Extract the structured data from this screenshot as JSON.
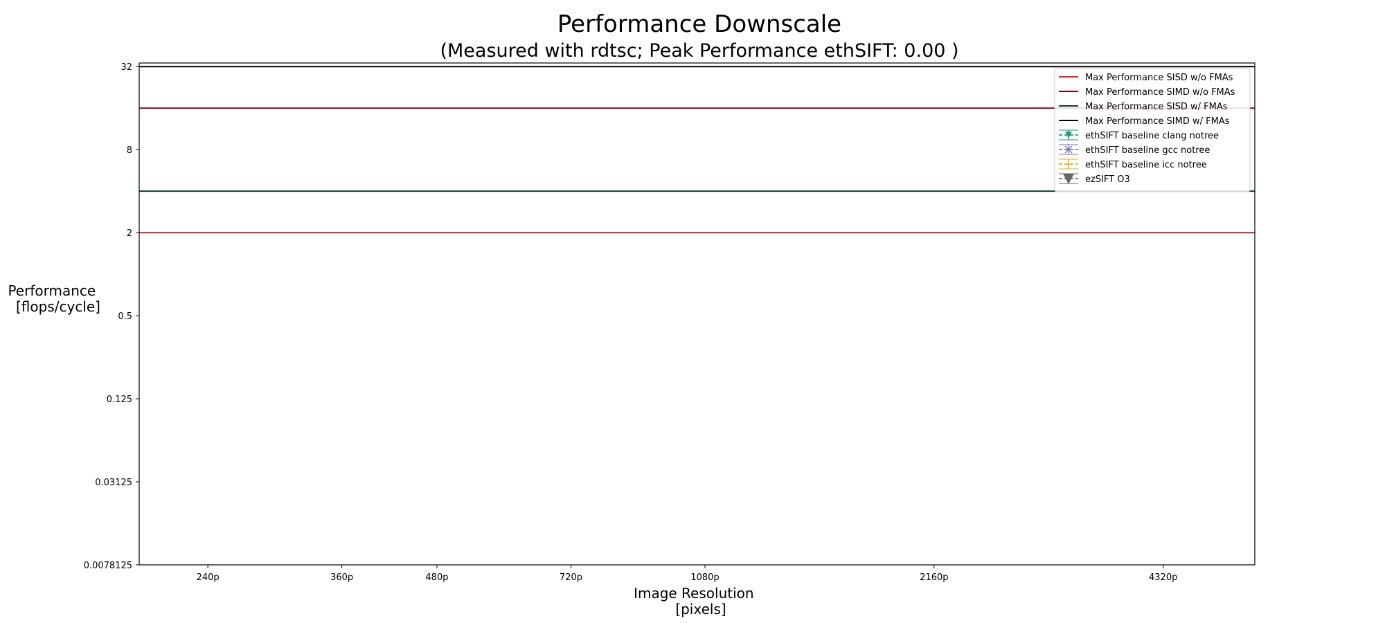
{
  "chart_data": {
    "type": "line",
    "title": "Performance Downscale",
    "subtitle": "(Measured with rdtsc; Peak Performance ethSIFT: 0.00 )",
    "xlabel": [
      "Image Resolution",
      "[pixels]"
    ],
    "ylabel": [
      "Performance",
      "[flops/cycle]"
    ],
    "yscale": "log2",
    "ylim": [
      0.0078125,
      34
    ],
    "y_ticks": [
      {
        "value": 0.0078125,
        "label": "0.0078125"
      },
      {
        "value": 0.03125,
        "label": "0.03125"
      },
      {
        "value": 0.125,
        "label": "0.125"
      },
      {
        "value": 0.5,
        "label": "0.5"
      },
      {
        "value": 2,
        "label": "2"
      },
      {
        "value": 8,
        "label": "8"
      },
      {
        "value": 32,
        "label": "32"
      }
    ],
    "xscale": "log",
    "xlim": [
      195,
      5700
    ],
    "x_ticks": [
      {
        "value": 240,
        "label": "240p"
      },
      {
        "value": 360,
        "label": "360p"
      },
      {
        "value": 480,
        "label": "480p"
      },
      {
        "value": 720,
        "label": "720p"
      },
      {
        "value": 1080,
        "label": "1080p"
      },
      {
        "value": 2160,
        "label": "2160p"
      },
      {
        "value": 4320,
        "label": "4320p"
      }
    ],
    "grid": false,
    "legend_position": "top-right",
    "series": [
      {
        "name": "Max Performance SISD w/o FMAs",
        "kind": "hline",
        "y": 2,
        "color": "#d62728",
        "dash": "solid",
        "marker": "none"
      },
      {
        "name": "Max Performance SIMD w/o FMAs",
        "kind": "hline",
        "y": 16,
        "color": "#800020",
        "dash": "solid",
        "marker": "none"
      },
      {
        "name": "Max Performance SISD w/ FMAs",
        "kind": "hline",
        "y": 4,
        "color": "#0b3d2c",
        "dash": "solid",
        "marker": "none"
      },
      {
        "name": "Max Performance SIMD w/ FMAs",
        "kind": "hline",
        "y": 32,
        "color": "#000000",
        "dash": "solid",
        "marker": "none"
      },
      {
        "name": "ethSIFT baseline clang notree",
        "kind": "series",
        "values": [],
        "color": "#1b9e77",
        "dash": "dashed",
        "marker": "triangle-down"
      },
      {
        "name": "ethSIFT baseline gcc notree",
        "kind": "series",
        "values": [],
        "color": "#7570b3",
        "dash": "dashed",
        "marker": "x"
      },
      {
        "name": "ethSIFT baseline icc notree",
        "kind": "series",
        "values": [],
        "color": "#e6ab02",
        "dash": "dashed",
        "marker": "plus"
      },
      {
        "name": "ezSIFT O3",
        "kind": "series",
        "values": [],
        "color": "#666666",
        "dash": "dashed",
        "marker": "triangle-down-big"
      }
    ]
  }
}
